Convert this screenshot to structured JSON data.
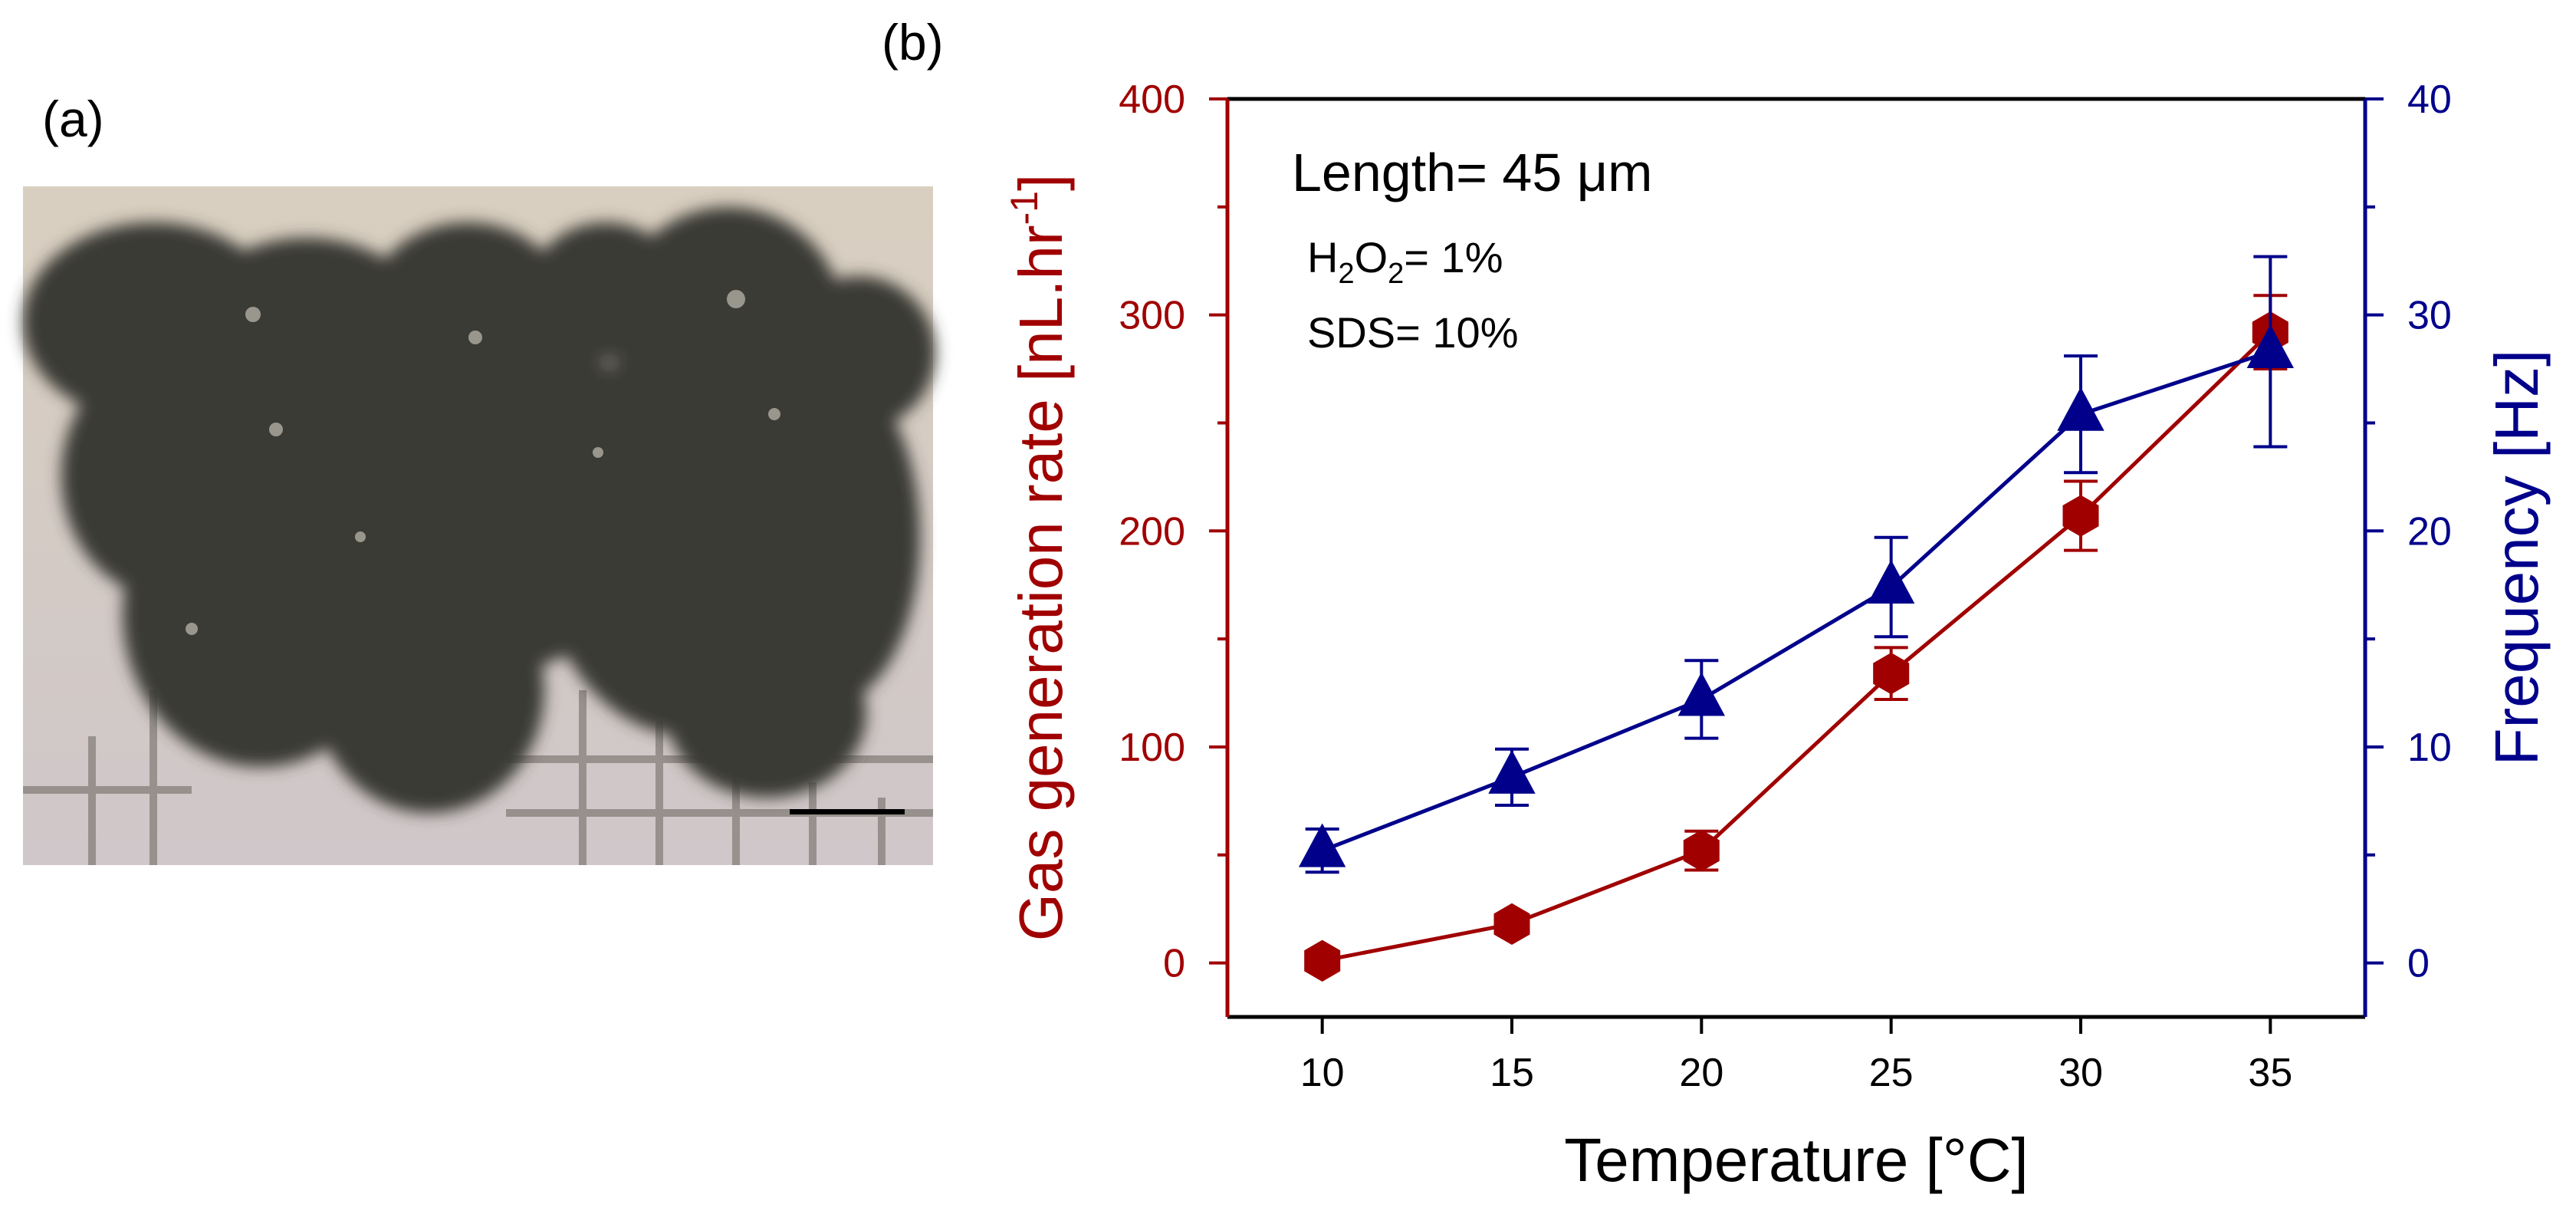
{
  "panels": {
    "a": {
      "label": "(a)"
    },
    "b": {
      "label": "(b)"
    }
  },
  "annotations": {
    "length_text": "Length= 45 μm",
    "h2o2_prefix": "H",
    "h2o2_sub1": "2",
    "h2o2_mid": "O",
    "h2o2_sub2": "2",
    "h2o2_value": "= 1%",
    "sds_text": "SDS= 10%"
  },
  "colors": {
    "left_series": "#A00000",
    "right_series": "#00008B",
    "axis": "#000000"
  },
  "chart_data": {
    "type": "line",
    "xlabel": "Temperature [°C]",
    "ylabel_left_main": "Gas generation rate [nL.hr",
    "ylabel_left_sup": "-1",
    "ylabel_left_end": "]",
    "ylabel_right": "Frequency [Hz]",
    "x": [
      10,
      15,
      20,
      25,
      30,
      35
    ],
    "xticks": [
      10,
      15,
      20,
      25,
      30,
      35
    ],
    "xlim": [
      7.5,
      37.5
    ],
    "ylim_left": [
      -25,
      400
    ],
    "yticks_left": [
      0,
      100,
      200,
      300,
      400
    ],
    "ylim_right": [
      -2.5,
      40
    ],
    "yticks_right": [
      0,
      10,
      20,
      30,
      40
    ],
    "series": [
      {
        "axis": "left",
        "marker": "hexagon",
        "values": [
          1,
          18,
          52,
          134,
          207,
          292
        ],
        "errors": [
          4,
          4,
          9,
          12,
          16,
          17
        ]
      },
      {
        "axis": "right",
        "marker": "triangle",
        "values": [
          5.2,
          8.6,
          12.2,
          17.4,
          25.4,
          28.3
        ],
        "errors": [
          1.0,
          1.3,
          1.8,
          2.3,
          2.7,
          4.4
        ]
      }
    ]
  }
}
